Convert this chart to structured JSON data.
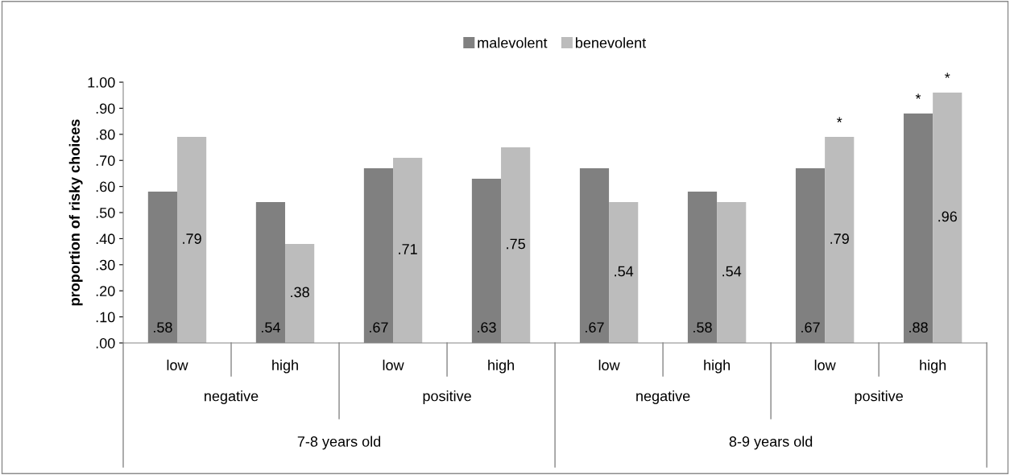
{
  "chart_data": {
    "type": "bar",
    "ylabel": "proportion of risky choices",
    "categories": [
      "low",
      "high",
      "low",
      "high",
      "low",
      "high",
      "low",
      "high"
    ],
    "series": [
      {
        "name": "malevolent",
        "color": "#808080",
        "values": [
          0.58,
          0.54,
          0.67,
          0.63,
          0.67,
          0.58,
          0.67,
          0.88
        ],
        "value_labels": [
          ".58",
          ".54",
          ".67",
          ".63",
          ".67",
          ".58",
          ".67",
          ".88"
        ]
      },
      {
        "name": "benevolent",
        "color": "#bcbcbc",
        "values": [
          0.79,
          0.38,
          0.71,
          0.75,
          0.54,
          0.54,
          0.79,
          0.96
        ],
        "value_labels": [
          ".79",
          ".38",
          ".71",
          ".75",
          ".54",
          ".54",
          ".79",
          ".96"
        ]
      }
    ],
    "annotations": [
      "negative",
      "positive",
      "negative",
      "positive",
      "7-8 years old",
      "8-9 years old",
      "*",
      "*",
      "*"
    ],
    "ylim": [
      0,
      1
    ],
    "yticks": [
      {
        "value": 0,
        "label": ".00"
      },
      {
        "value": 0.1,
        "label": ".10"
      },
      {
        "value": 0.2,
        "label": ".20"
      },
      {
        "value": 0.3,
        "label": ".30"
      },
      {
        "value": 0.4,
        "label": ".40"
      },
      {
        "value": 0.5,
        "label": ".50"
      },
      {
        "value": 0.6,
        "label": ".60"
      },
      {
        "value": 0.7,
        "label": ".70"
      },
      {
        "value": 0.8,
        "label": ".80"
      },
      {
        "value": 0.9,
        "label": ".90"
      },
      {
        "value": 1,
        "label": "1.00"
      }
    ],
    "grid": false,
    "legend": "top"
  }
}
